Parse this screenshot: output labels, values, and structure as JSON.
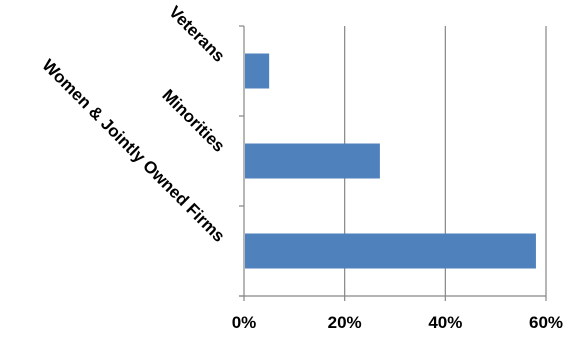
{
  "chart_data": {
    "type": "bar",
    "orientation": "horizontal",
    "title": "",
    "xlabel": "",
    "ylabel": "",
    "categories": [
      "Veterans",
      "Minorities",
      "Women & Jointly Owned Firms"
    ],
    "values": [
      5,
      27,
      58
    ],
    "xlim": [
      0,
      60
    ],
    "x_ticks": [
      0,
      20,
      40,
      60
    ],
    "x_tick_labels": [
      "0%",
      "20%",
      "40%",
      "60%"
    ],
    "grid": "vertical major gridlines",
    "legend": "none",
    "bar_color": "#4F81BD",
    "grid_color": "#868686"
  }
}
